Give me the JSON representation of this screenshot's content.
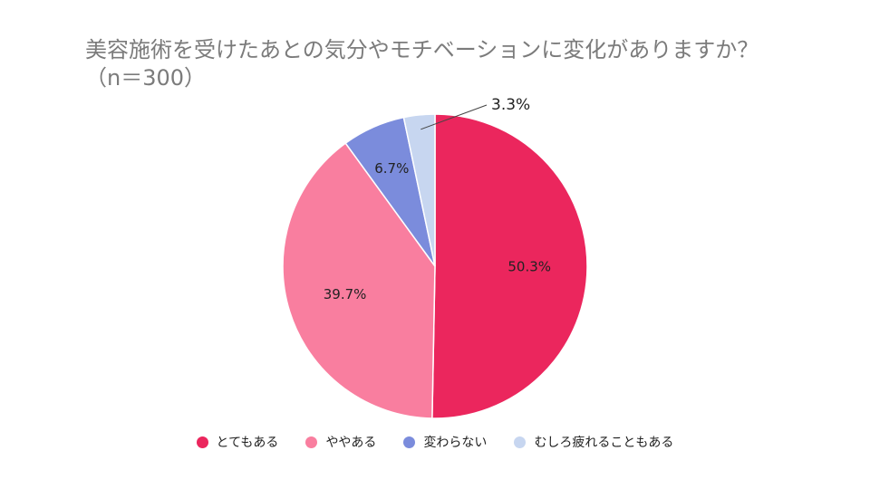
{
  "chart_data": {
    "type": "pie",
    "title": "美容施術を受けたあとの気分やモチベーションに変化がありますか？（n＝300）",
    "categories": [
      "とてもある",
      "ややある",
      "変わらない",
      "むしろ疲れることもある"
    ],
    "values": [
      50.3,
      39.7,
      6.7,
      3.3
    ],
    "labels": [
      "50.3%",
      "39.7%",
      "6.7%",
      "3.3%"
    ],
    "colors": [
      "#eb265d",
      "#f97e9f",
      "#7b8cdc",
      "#c7d6f0"
    ],
    "legend_position": "bottom"
  }
}
